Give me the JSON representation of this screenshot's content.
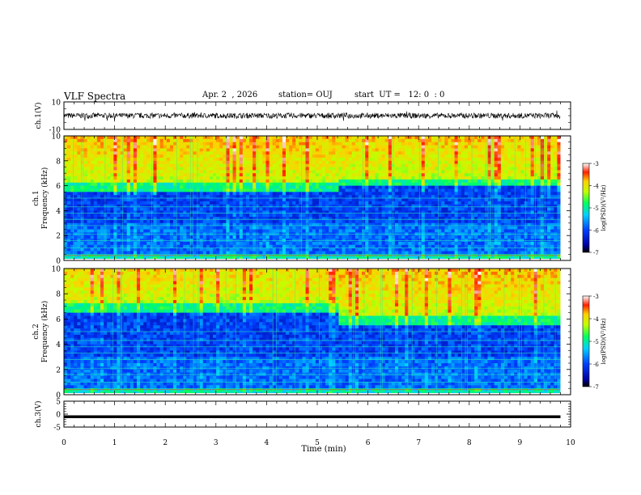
{
  "header": {
    "title": "VLF Spectra",
    "date": "Apr. 2  , 2026",
    "station": "station= OUJ",
    "start": "start  UT =   12: 0  : 0"
  },
  "chart_data": [
    {
      "type": "line",
      "name": "ch1-waveform",
      "ylabel": "ch.1(V)",
      "ylim": [
        -10,
        10
      ],
      "y_ticks": [
        "10",
        "-10"
      ],
      "x": [
        0,
        9.8
      ],
      "description_level": 0,
      "noise_amplitude": 2
    },
    {
      "type": "heatmap",
      "name": "ch1-spectrogram",
      "ylabel": "ch.1\nFrequency (kHz)",
      "ylim": [
        0,
        10
      ],
      "y_ticks": [
        "10",
        "8",
        "6",
        "4",
        "2",
        "0"
      ],
      "xlim": [
        0,
        10
      ],
      "data_xmax": 9.8,
      "colorbar": {
        "label": "log(PSD)(V²/Hz)",
        "ticks": [
          "-3",
          "-4",
          "-5",
          "-6",
          "-7"
        ],
        "range": [
          -7,
          -3
        ]
      }
    },
    {
      "type": "heatmap",
      "name": "ch2-spectrogram",
      "ylabel": "ch.2\nFrequency (kHz)",
      "ylim": [
        0,
        10
      ],
      "y_ticks": [
        "10",
        "8",
        "6",
        "4",
        "2",
        "0"
      ],
      "xlim": [
        0,
        10
      ],
      "data_xmax": 9.8,
      "colorbar": {
        "label": "log(PSD)(V²/Hz)",
        "ticks": [
          "-3",
          "-4",
          "-5",
          "-6",
          "-7"
        ],
        "range": [
          -7,
          -3
        ]
      }
    },
    {
      "type": "line",
      "name": "ch3-waveform",
      "ylabel": "ch.3(V)",
      "ylim": [
        -5,
        5
      ],
      "y_ticks": [
        "5",
        "0",
        "-5"
      ],
      "x": [
        0,
        9.8
      ],
      "y": [
        -1,
        -1
      ]
    }
  ],
  "xaxis": {
    "label": "Time (min)",
    "ticks": [
      "0",
      "1",
      "2",
      "3",
      "4",
      "5",
      "6",
      "7",
      "8",
      "9",
      "10"
    ],
    "xlim": [
      0,
      10
    ]
  }
}
